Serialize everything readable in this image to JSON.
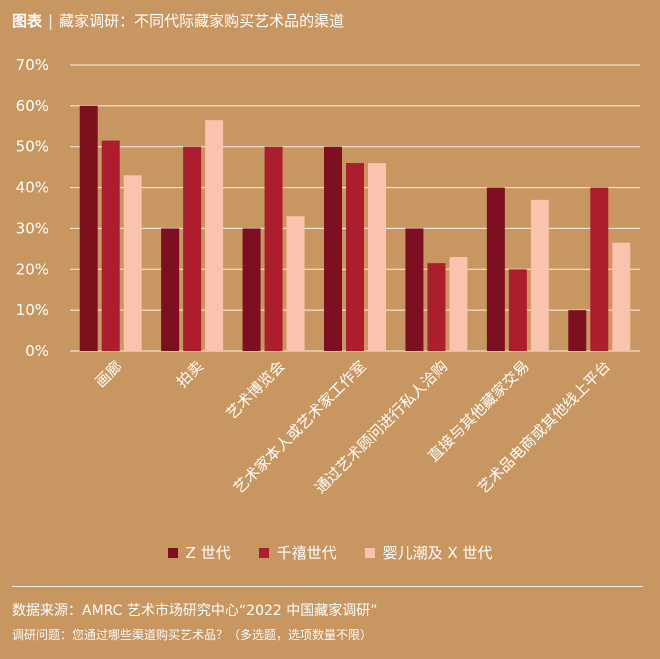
{
  "header": {
    "label": "图表",
    "separator": "|",
    "title": "藏家调研：不同代际藏家购买艺术品的渠道"
  },
  "chart_data": {
    "type": "bar",
    "categories": [
      "画廊",
      "拍卖",
      "艺术博览会",
      "艺术家本人或艺术家工作室",
      "通过艺术顾问进行私人洽购",
      "直接与其他藏家交易",
      "艺术品电商或其他线上平台"
    ],
    "series": [
      {
        "name": "Z 世代",
        "color": "#7c1020",
        "values": [
          60,
          30,
          30,
          50,
          30,
          40,
          10
        ]
      },
      {
        "name": "千禧世代",
        "color": "#ac1e2e",
        "values": [
          51.5,
          50,
          50,
          46,
          21.5,
          20,
          40
        ]
      },
      {
        "name": "婴儿潮及 X 世代",
        "color": "#f9c3ad",
        "values": [
          43,
          56.5,
          33,
          46,
          23,
          37,
          26.5
        ]
      }
    ],
    "ylim": [
      0,
      70
    ],
    "yticks": [
      "0%",
      "10%",
      "20%",
      "30%",
      "40%",
      "50%",
      "60%",
      "70%"
    ],
    "grid": true,
    "legend_position": "bottom"
  },
  "footer": {
    "source": "数据来源：AMRC 艺术市场研究中心“2022 中国藏家调研”",
    "question": "调研问题：您通过哪些渠道购买艺术品？（多选题，选项数量不限）"
  }
}
